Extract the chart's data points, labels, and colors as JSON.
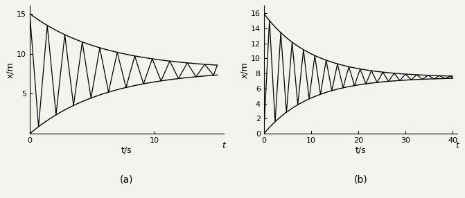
{
  "fig_width": 6.71,
  "fig_height": 2.86,
  "dpi": 100,
  "bg_color": "#f5f3ee",
  "subplot_a": {
    "label": "(a)",
    "xlabel": "t/s",
    "ylabel": "x/m",
    "t_end": 15,
    "t_label": "t",
    "equilibrium": 8.0,
    "upper_start": 15.0,
    "lower_start": 0.0,
    "upper_tau": 6.0,
    "lower_tau": 6.0,
    "half_period": 0.7,
    "start_upper": true,
    "yticks": [
      5,
      10,
      15
    ],
    "xticks": [
      0,
      10
    ],
    "ylim": [
      0,
      16
    ],
    "xlim": [
      0,
      15.5
    ]
  },
  "subplot_b": {
    "label": "(b)",
    "xlabel": "t/s",
    "ylabel": "x/m",
    "t_end": 40,
    "t_label": "t",
    "equilibrium": 7.5,
    "upper_start": 16.0,
    "lower_start": 0.0,
    "upper_tau": 10.0,
    "lower_tau": 10.0,
    "half_period": 1.2,
    "start_upper": false,
    "yticks": [
      0,
      2,
      4,
      6,
      8,
      10,
      12,
      14,
      16
    ],
    "xticks": [
      0,
      10,
      20,
      30,
      40
    ],
    "ylim": [
      0,
      17
    ],
    "xlim": [
      0,
      41
    ]
  }
}
